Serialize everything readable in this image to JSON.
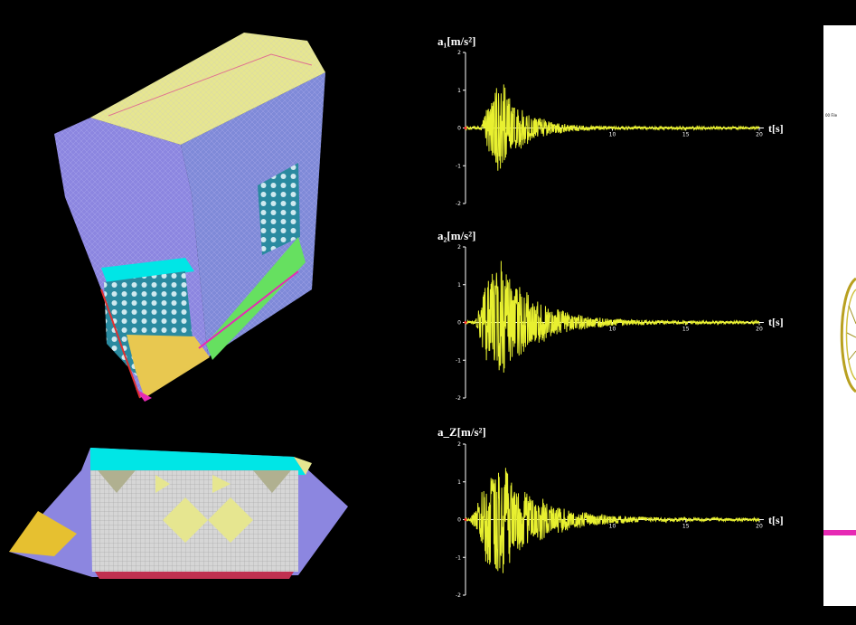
{
  "chart_data": [
    {
      "type": "line",
      "ylabel": "a₁[m/s²]",
      "xlabel": "t[s]",
      "xlim": [
        0,
        20
      ],
      "ylim": [
        -2,
        2
      ],
      "x_ticks": [
        "10",
        "15",
        "20"
      ],
      "y_ticks": [
        "2",
        "1",
        "0",
        "-1",
        "-2"
      ],
      "series": [
        {
          "color": "#e8f030",
          "peak": 1.5,
          "burst_start": 1.0,
          "burst_peak": 2.2,
          "decay": 1.6
        }
      ]
    },
    {
      "type": "line",
      "ylabel": "a₂[m/s²]",
      "xlabel": "t[s]",
      "xlim": [
        0,
        20
      ],
      "ylim": [
        -2,
        2
      ],
      "x_ticks": [
        "10",
        "15",
        "20"
      ],
      "y_ticks": [
        "2",
        "1",
        "0",
        "-1",
        "-2"
      ],
      "series": [
        {
          "color": "#e8f030",
          "peak": 1.9,
          "burst_start": 0.6,
          "burst_peak": 2.1,
          "decay": 2.4
        }
      ]
    },
    {
      "type": "line",
      "ylabel": "a_Z[m/s²]",
      "xlabel": "t[s]",
      "xlim": [
        0,
        20
      ],
      "ylim": [
        -2,
        2
      ],
      "x_ticks": [
        "10",
        "15",
        "20"
      ],
      "y_ticks": [
        "2",
        "1",
        "0",
        "-1",
        "-2"
      ],
      "series": [
        {
          "color": "#e8f030",
          "peak": 1.8,
          "burst_start": 0.3,
          "burst_peak": 2.0,
          "decay": 2.6
        }
      ]
    }
  ],
  "right_panel": {
    "caption": "00  File"
  },
  "colors": {
    "background": "#000000",
    "axis": "#ffffff",
    "signal": "#e8f030",
    "model_blue": "#8c86e0",
    "model_yellow": "#e6e690",
    "model_cyan": "#00e6e6",
    "model_magenta": "#e62ab4"
  }
}
